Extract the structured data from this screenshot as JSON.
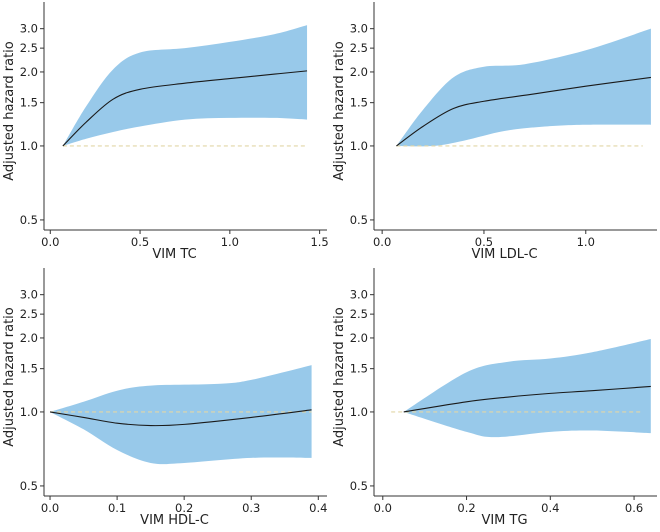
{
  "chart_data": [
    {
      "type": "line",
      "title": "",
      "xlabel": "VIM TC",
      "ylabel": "Adjusted hazard ratio",
      "yscale": "log",
      "ylim": [
        0.455,
        3.78
      ],
      "xlim": [
        -0.035,
        1.53
      ],
      "xticks": [
        0.0,
        0.5,
        1.0,
        1.5
      ],
      "xtick_labels": [
        "0.0",
        "0.5",
        "1.0",
        "1.5"
      ],
      "yticks": [
        0.5,
        1.0,
        1.5,
        2.0,
        2.5,
        3.0
      ],
      "ytick_labels": [
        "0.5",
        "1.0",
        "1.5",
        "2.0",
        "2.5",
        "3.0"
      ],
      "reference_line": {
        "y": 1.0,
        "x_range": [
          0.07,
          1.43
        ]
      },
      "estimate": {
        "x": [
          0.07,
          0.2,
          0.35,
          0.5,
          0.75,
          1.0,
          1.25,
          1.43
        ],
        "y": [
          1.0,
          1.25,
          1.55,
          1.7,
          1.8,
          1.88,
          1.96,
          2.02
        ]
      },
      "ci_upper": {
        "x": [
          0.07,
          0.2,
          0.35,
          0.5,
          0.75,
          1.0,
          1.25,
          1.43
        ],
        "y": [
          1.0,
          1.45,
          2.05,
          2.4,
          2.5,
          2.65,
          2.85,
          3.1
        ]
      },
      "ci_lower": {
        "x": [
          0.07,
          0.2,
          0.35,
          0.5,
          0.75,
          1.0,
          1.25,
          1.43
        ],
        "y": [
          1.0,
          1.07,
          1.14,
          1.2,
          1.28,
          1.3,
          1.3,
          1.28
        ]
      }
    },
    {
      "type": "line",
      "title": "",
      "xlabel": "VIM LDL-C",
      "ylabel": "Adjusted hazard ratio",
      "yscale": "log",
      "ylim": [
        0.455,
        3.78
      ],
      "xlim": [
        -0.04,
        1.34
      ],
      "xticks": [
        0.0,
        0.5,
        1.0
      ],
      "xtick_labels": [
        "0.0",
        "0.5",
        "1.0"
      ],
      "yticks": [
        0.5,
        1.0,
        1.5,
        2.0,
        2.5,
        3.0
      ],
      "ytick_labels": [
        "0.5",
        "1.0",
        "1.5",
        "2.0",
        "2.5",
        "3.0"
      ],
      "reference_line": {
        "y": 1.0,
        "x_range": [
          0.07,
          1.28
        ]
      },
      "estimate": {
        "x": [
          0.07,
          0.2,
          0.35,
          0.5,
          0.75,
          1.0,
          1.32
        ],
        "y": [
          1.0,
          1.2,
          1.42,
          1.52,
          1.63,
          1.75,
          1.9
        ]
      },
      "ci_upper": {
        "x": [
          0.07,
          0.2,
          0.35,
          0.5,
          0.7,
          1.0,
          1.32
        ],
        "y": [
          1.0,
          1.4,
          1.9,
          2.1,
          2.15,
          2.45,
          3.0
        ]
      },
      "ci_lower": {
        "x": [
          0.07,
          0.25,
          0.4,
          0.6,
          0.8,
          1.0,
          1.32
        ],
        "y": [
          1.0,
          1.0,
          1.05,
          1.15,
          1.2,
          1.22,
          1.22
        ]
      }
    },
    {
      "type": "line",
      "title": "",
      "xlabel": "VIM HDL-C",
      "ylabel": "Adjusted hazard ratio",
      "yscale": "log",
      "ylim": [
        0.455,
        3.78
      ],
      "xlim": [
        -0.009,
        0.41
      ],
      "xticks": [
        0.0,
        0.1,
        0.2,
        0.3,
        0.4
      ],
      "xtick_labels": [
        "0.0",
        "0.1",
        "0.2",
        "0.3",
        "0.4"
      ],
      "yticks": [
        0.5,
        1.0,
        1.5,
        2.0,
        2.5,
        3.0
      ],
      "ytick_labels": [
        "0.5",
        "1.0",
        "1.5",
        "2.0",
        "2.5",
        "3.0"
      ],
      "reference_line": {
        "y": 1.0,
        "x_range": [
          0.0,
          0.39
        ]
      },
      "estimate": {
        "x": [
          0.0,
          0.05,
          0.1,
          0.15,
          0.2,
          0.3,
          0.39
        ],
        "y": [
          1.0,
          0.95,
          0.9,
          0.88,
          0.89,
          0.95,
          1.02
        ]
      },
      "ci_upper": {
        "x": [
          0.0,
          0.05,
          0.1,
          0.15,
          0.25,
          0.3,
          0.39
        ],
        "y": [
          1.0,
          1.1,
          1.22,
          1.28,
          1.3,
          1.35,
          1.55
        ]
      },
      "ci_lower": {
        "x": [
          0.0,
          0.05,
          0.1,
          0.15,
          0.2,
          0.3,
          0.39
        ],
        "y": [
          1.0,
          0.85,
          0.7,
          0.62,
          0.62,
          0.65,
          0.65
        ]
      }
    },
    {
      "type": "line",
      "title": "",
      "xlabel": "VIM TG",
      "ylabel": "Adjusted hazard ratio",
      "yscale": "log",
      "ylim": [
        0.455,
        3.78
      ],
      "xlim": [
        -0.021,
        0.65
      ],
      "xticks": [
        0.0,
        0.2,
        0.4,
        0.6
      ],
      "xtick_labels": [
        "0.0",
        "0.2",
        "0.4",
        "0.6"
      ],
      "yticks": [
        0.5,
        1.0,
        1.5,
        2.0,
        2.5,
        3.0
      ],
      "ytick_labels": [
        "0.5",
        "1.0",
        "1.5",
        "2.0",
        "2.5",
        "3.0"
      ],
      "reference_line": {
        "y": 1.0,
        "x_range": [
          0.02,
          0.62
        ]
      },
      "estimate": {
        "x": [
          0.05,
          0.2,
          0.3,
          0.4,
          0.5,
          0.64
        ],
        "y": [
          1.0,
          1.1,
          1.15,
          1.19,
          1.22,
          1.27
        ]
      },
      "ci_upper": {
        "x": [
          0.05,
          0.2,
          0.3,
          0.4,
          0.5,
          0.64
        ],
        "y": [
          1.0,
          1.45,
          1.6,
          1.65,
          1.75,
          1.98
        ]
      },
      "ci_lower": {
        "x": [
          0.05,
          0.2,
          0.27,
          0.4,
          0.5,
          0.64
        ],
        "y": [
          1.0,
          0.83,
          0.79,
          0.83,
          0.84,
          0.82
        ]
      }
    }
  ],
  "colors": {
    "ci_fill": "#98c9ea",
    "estimate": "#1a1a1a",
    "reference": "#e2d6a6",
    "axis": "#333333"
  }
}
